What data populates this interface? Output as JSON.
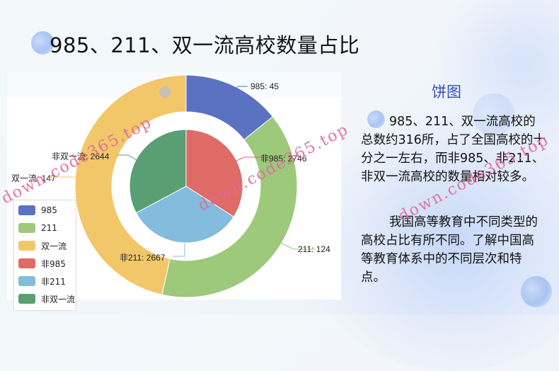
{
  "title": "985、211、双一流高校数量占比",
  "side_panel": {
    "heading": "饼图",
    "paragraph1": "985、211、双一流高校的总数约316所，占了全国高校的十分之一左右，而非985、非211、非双一流高校的数量相对较多。",
    "paragraph2": "我国高等教育中不同类型的高校占比有所不同。了解中国高等教育体系中的不同层次和特点。"
  },
  "legend": {
    "items": [
      {
        "label": "985",
        "color": "#5470c6"
      },
      {
        "label": "211",
        "color": "#91cc75"
      },
      {
        "label": "双一流",
        "color": "#fac858"
      },
      {
        "label": "非985",
        "color": "#ee6666"
      },
      {
        "label": "非211",
        "color": "#73c0de"
      },
      {
        "label": "非双一流",
        "color": "#3ba272"
      }
    ]
  },
  "labels": {
    "l985": "985: 45",
    "l211": "211: 124",
    "lsyl": "双一流: 147",
    "lf985": "非985: 2746",
    "lf211": "非211: 2667",
    "lfsyl": "非双一流: 2644"
  },
  "watermark": "down.code365.top",
  "chart_data": {
    "type": "pie",
    "title": "985、211、双一流高校数量占比",
    "series": [
      {
        "name": "outer-ring",
        "kind": "donut",
        "categories": [
          "985",
          "211",
          "双一流"
        ],
        "values": [
          45,
          124,
          147
        ],
        "colors": [
          "#5b72c2",
          "#9cc97a",
          "#f2c76a"
        ]
      },
      {
        "name": "inner-pie",
        "kind": "pie",
        "categories": [
          "非985",
          "非211",
          "非双一流"
        ],
        "values": [
          2746,
          2667,
          2644
        ],
        "colors": [
          "#de6b65",
          "#83bcdc",
          "#5a9f74"
        ]
      }
    ],
    "legend_position": "bottom-left",
    "legend": [
      "985",
      "211",
      "双一流",
      "非985",
      "非211",
      "非双一流"
    ],
    "data_labels": [
      "985: 45",
      "211: 124",
      "双一流: 147",
      "非985: 2746",
      "非211: 2667",
      "非双一流: 2644"
    ]
  }
}
